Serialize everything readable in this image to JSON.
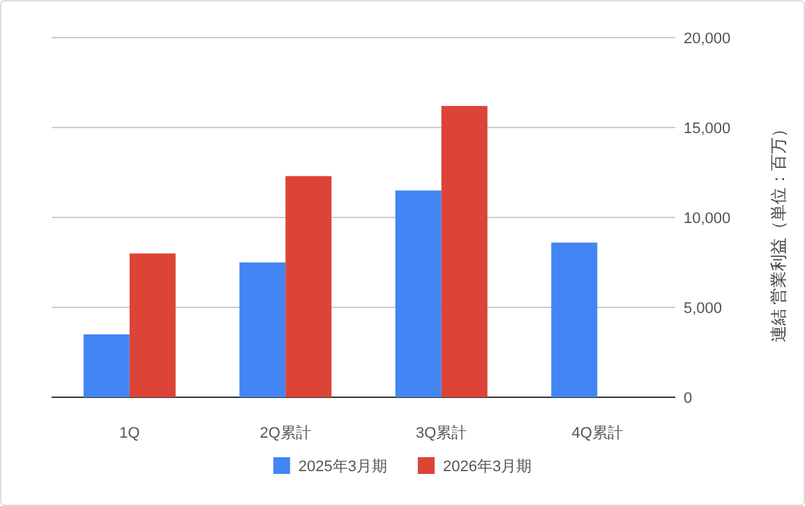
{
  "chart_data": {
    "type": "bar",
    "ylabel": "連結 営業利益（単位：百万）",
    "categories": [
      "1Q",
      "2Q累計",
      "3Q累計",
      "4Q累計"
    ],
    "series": [
      {
        "name": "2025年3月期",
        "color": "#4285f4",
        "values": [
          3500,
          7500,
          11500,
          8600
        ]
      },
      {
        "name": "2026年3月期",
        "color": "#db4437",
        "values": [
          8000,
          12300,
          16200,
          null
        ]
      }
    ],
    "ylim": [
      0,
      20000
    ],
    "yticks": [
      {
        "value": 0,
        "label": "0"
      },
      {
        "value": 5000,
        "label": "5,000"
      },
      {
        "value": 10000,
        "label": "10,000"
      },
      {
        "value": 15000,
        "label": "15,000"
      },
      {
        "value": 20000,
        "label": "20,000"
      }
    ],
    "grid": true,
    "legend": "bottom"
  }
}
